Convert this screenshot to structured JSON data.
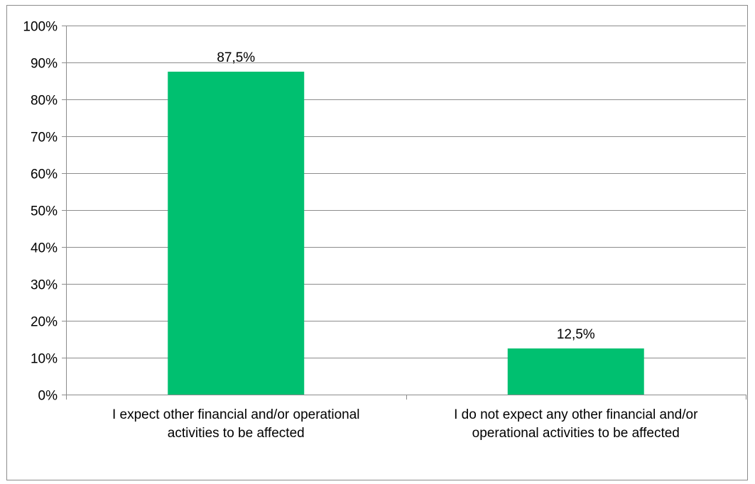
{
  "chart_data": {
    "type": "bar",
    "categories": [
      [
        "I expect other financial and/or operational",
        "activities to be affected"
      ],
      [
        "I do not expect any other financial and/or",
        "operational activities to be  affected"
      ]
    ],
    "values": [
      87.5,
      12.5
    ],
    "data_labels": [
      "87,5%",
      "12,5%"
    ],
    "title": "",
    "xlabel": "",
    "ylabel": "",
    "ylim": [
      0,
      100
    ],
    "yticks": [
      0,
      10,
      20,
      30,
      40,
      50,
      60,
      70,
      80,
      90,
      100
    ],
    "ytick_labels": [
      "0%",
      "10%",
      "20%",
      "30%",
      "40%",
      "50%",
      "60%",
      "70%",
      "80%",
      "90%",
      "100%"
    ],
    "grid": true,
    "legend": "none",
    "bar_color": "#00c070"
  }
}
